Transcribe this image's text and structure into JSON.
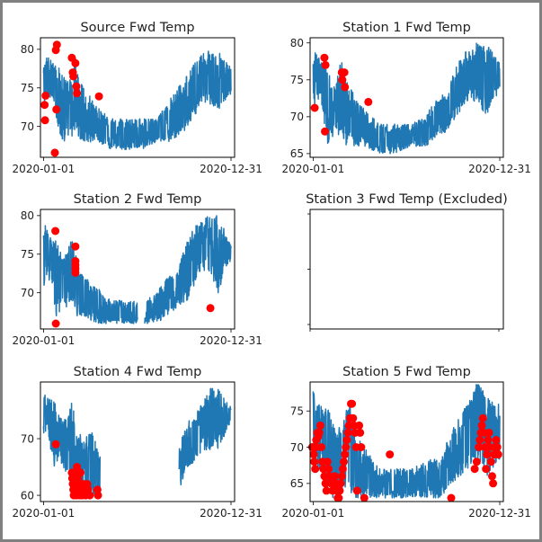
{
  "figure": {
    "background": "#ffffff",
    "border_color": "#808080"
  },
  "colors": {
    "line": "#1f77b4",
    "marker": "#ff0000",
    "axis": "#000000"
  },
  "chart_data": [
    {
      "type": "line",
      "title": "Source Fwd Temp",
      "xlabel": "",
      "ylabel": "",
      "x_ticks": [
        "2020-01-01",
        "2020-12-31"
      ],
      "y_ticks": [
        70,
        75,
        80
      ],
      "xlim_days": [
        -6,
        372
      ],
      "ylim": [
        66,
        81.5
      ],
      "series": [
        {
          "name": "temperature",
          "style": "line",
          "envelope_day_low_high": [
            [
              0,
              72,
              79
            ],
            [
              10,
              74,
              79
            ],
            [
              20,
              73,
              78
            ],
            [
              28,
              70,
              78
            ],
            [
              35,
              68,
              77
            ],
            [
              45,
              68,
              76
            ],
            [
              55,
              68,
              77
            ],
            [
              62,
              70,
              79
            ],
            [
              70,
              68,
              76
            ],
            [
              80,
              68,
              75
            ],
            [
              100,
              68,
              73
            ],
            [
              130,
              67,
              71
            ],
            [
              160,
              67,
              71
            ],
            [
              190,
              67,
              71
            ],
            [
              220,
              68,
              71
            ],
            [
              240,
              68,
              73
            ],
            [
              260,
              68,
              75
            ],
            [
              280,
              70,
              77
            ],
            [
              300,
              72,
              79
            ],
            [
              320,
              73,
              80
            ],
            [
              340,
              72,
              80
            ],
            [
              360,
              74,
              78
            ]
          ]
        }
      ],
      "anomalies": {
        "name": "flagged",
        "style": "marker",
        "points": [
          [
            2,
            72.8
          ],
          [
            3,
            70.8
          ],
          [
            4,
            74
          ],
          [
            22,
            66.6
          ],
          [
            24,
            79.9
          ],
          [
            26,
            80.6
          ],
          [
            25,
            72.2
          ],
          [
            55,
            78.9
          ],
          [
            57,
            77
          ],
          [
            58,
            76.5
          ],
          [
            62,
            78.2
          ],
          [
            64,
            75.2
          ],
          [
            65,
            74.3
          ],
          [
            108,
            73.9
          ]
        ]
      }
    },
    {
      "type": "line",
      "title": "Station 1 Fwd Temp",
      "xlabel": "",
      "ylabel": "",
      "x_ticks": [
        "2020-01-01",
        "2020-12-31"
      ],
      "y_ticks": [
        65,
        70,
        75,
        80
      ],
      "xlim_days": [
        -6,
        372
      ],
      "ylim": [
        64.5,
        80.7
      ],
      "series": [
        {
          "name": "temperature",
          "style": "line",
          "envelope_day_low_high": [
            [
              0,
              71,
              79
            ],
            [
              15,
              73,
              78
            ],
            [
              25,
              66,
              77
            ],
            [
              35,
              67,
              75
            ],
            [
              45,
              67,
              75
            ],
            [
              55,
              68,
              78
            ],
            [
              65,
              66,
              75
            ],
            [
              80,
              66,
              73
            ],
            [
              100,
              66,
              71
            ],
            [
              130,
              65,
              69
            ],
            [
              160,
              65,
              69
            ],
            [
              190,
              66,
              69
            ],
            [
              220,
              66,
              70
            ],
            [
              240,
              67,
              73
            ],
            [
              260,
              68,
              73
            ],
            [
              280,
              70,
              77
            ],
            [
              300,
              72,
              79
            ],
            [
              320,
              72,
              80
            ],
            [
              340,
              70,
              80
            ],
            [
              360,
              73,
              78
            ]
          ]
        }
      ],
      "anomalies": {
        "name": "flagged",
        "style": "marker",
        "points": [
          [
            3,
            71.2
          ],
          [
            22,
            78
          ],
          [
            23,
            68
          ],
          [
            24,
            77
          ],
          [
            56,
            76
          ],
          [
            57,
            75
          ],
          [
            61,
            76
          ],
          [
            62,
            74
          ],
          [
            108,
            72
          ]
        ]
      }
    },
    {
      "type": "line",
      "title": "Station 2 Fwd Temp",
      "xlabel": "",
      "ylabel": "",
      "x_ticks": [
        "2020-01-01",
        "2020-12-31"
      ],
      "y_ticks": [
        70,
        75,
        80
      ],
      "xlim_days": [
        -6,
        372
      ],
      "ylim": [
        65.3,
        80.8
      ],
      "series": [
        {
          "name": "temperature",
          "style": "line",
          "gap_days": [
            183,
            197
          ],
          "envelope_day_low_high": [
            [
              0,
              70,
              79
            ],
            [
              15,
              72,
              78
            ],
            [
              25,
              66,
              77
            ],
            [
              35,
              68,
              75
            ],
            [
              45,
              68,
              75
            ],
            [
              55,
              69,
              78
            ],
            [
              65,
              67,
              74
            ],
            [
              80,
              67,
              72
            ],
            [
              100,
              66,
              71
            ],
            [
              130,
              66,
              69
            ],
            [
              160,
              66,
              69
            ],
            [
              182,
              66,
              69
            ],
            [
              198,
              66,
              69
            ],
            [
              220,
              66,
              70
            ],
            [
              240,
              67,
              72
            ],
            [
              260,
              68,
              73
            ],
            [
              280,
              69,
              77
            ],
            [
              300,
              72,
              79
            ],
            [
              320,
              73,
              80
            ],
            [
              340,
              70,
              80
            ],
            [
              360,
              74,
              77
            ]
          ]
        }
      ],
      "anomalies": {
        "name": "flagged",
        "style": "marker",
        "points": [
          [
            23,
            78
          ],
          [
            24,
            66
          ],
          [
            62,
            76
          ],
          [
            62,
            74.1
          ],
          [
            62,
            73.6
          ],
          [
            62,
            73.1
          ],
          [
            62,
            72.6
          ],
          [
            325,
            68
          ]
        ]
      }
    },
    {
      "type": "line",
      "title": "Station 3 Fwd Temp (Excluded)",
      "xlabel": "",
      "ylabel": "",
      "x_ticks": [],
      "y_ticks": [],
      "series": [],
      "anomalies": {
        "points": []
      }
    },
    {
      "type": "line",
      "title": "Station 4 Fwd Temp",
      "xlabel": "",
      "ylabel": "",
      "x_ticks": [
        "2020-01-01",
        "2020-12-31"
      ],
      "y_ticks": [
        60,
        70
      ],
      "xlim_days": [
        -6,
        372
      ],
      "ylim": [
        58.9,
        80
      ],
      "series": [
        {
          "name": "temperature",
          "style": "line",
          "gap_days": [
            110,
            264
          ],
          "envelope_day_low_high": [
            [
              0,
              71,
              78
            ],
            [
              10,
              70,
              77
            ],
            [
              20,
              65,
              77
            ],
            [
              30,
              66,
              74
            ],
            [
              45,
              64,
              74
            ],
            [
              55,
              63,
              77
            ],
            [
              65,
              60,
              72
            ],
            [
              80,
              60,
              71
            ],
            [
              95,
              60,
              71
            ],
            [
              108,
              60,
              68
            ],
            [
              265,
              61,
              69
            ],
            [
              280,
              65,
              73
            ],
            [
              295,
              66,
              74
            ],
            [
              310,
              68,
              77
            ],
            [
              325,
              68,
              79
            ],
            [
              340,
              68,
              79
            ],
            [
              360,
              72,
              76
            ]
          ]
        }
      ],
      "anomalies": {
        "name": "flagged",
        "style": "marker",
        "points": [
          [
            24,
            69
          ],
          [
            55,
            64
          ],
          [
            56,
            63
          ],
          [
            57,
            62
          ],
          [
            58,
            61
          ],
          [
            59,
            60
          ],
          [
            60,
            64
          ],
          [
            61,
            63
          ],
          [
            62,
            62
          ],
          [
            63,
            61
          ],
          [
            64,
            60
          ],
          [
            65,
            65
          ],
          [
            66,
            64
          ],
          [
            67,
            63
          ],
          [
            68,
            62
          ],
          [
            69,
            61
          ],
          [
            70,
            60
          ],
          [
            72,
            64
          ],
          [
            73,
            62
          ],
          [
            74,
            61
          ],
          [
            75,
            60
          ],
          [
            78,
            62
          ],
          [
            80,
            61
          ],
          [
            82,
            60
          ],
          [
            85,
            62
          ],
          [
            87,
            61
          ],
          [
            90,
            60
          ],
          [
            105,
            61
          ],
          [
            106,
            60
          ]
        ]
      }
    },
    {
      "type": "line",
      "title": "Station 5 Fwd Temp",
      "xlabel": "",
      "ylabel": "",
      "x_ticks": [
        "2020-01-01",
        "2020-12-31"
      ],
      "y_ticks": [
        65,
        70,
        75
      ],
      "xlim_days": [
        -6,
        372
      ],
      "ylim": [
        62.5,
        79
      ],
      "series": [
        {
          "name": "temperature",
          "style": "line",
          "envelope_day_low_high": [
            [
              0,
              67,
              78
            ],
            [
              15,
              67,
              76
            ],
            [
              30,
              63,
              76
            ],
            [
              45,
              63,
              72
            ],
            [
              60,
              64,
              74
            ],
            [
              70,
              64,
              77
            ],
            [
              80,
              63,
              72
            ],
            [
              100,
              63,
              70
            ],
            [
              130,
              63,
              67
            ],
            [
              160,
              63,
              67
            ],
            [
              190,
              63,
              67
            ],
            [
              220,
              63,
              68
            ],
            [
              250,
              63,
              69
            ],
            [
              270,
              65,
              72
            ],
            [
              290,
              66,
              75
            ],
            [
              310,
              67,
              77
            ],
            [
              320,
              68,
              79
            ],
            [
              340,
              66,
              77
            ],
            [
              360,
              68,
              76
            ]
          ]
        }
      ],
      "anomalies": {
        "name": "flagged",
        "style": "marker",
        "points": [
          [
            -2,
            70
          ],
          [
            1,
            69
          ],
          [
            2,
            68
          ],
          [
            4,
            67
          ],
          [
            5,
            70
          ],
          [
            6,
            71
          ],
          [
            8,
            72
          ],
          [
            10,
            71.5
          ],
          [
            12,
            72
          ],
          [
            14,
            73
          ],
          [
            16,
            70
          ],
          [
            18,
            68
          ],
          [
            20,
            67
          ],
          [
            22,
            66
          ],
          [
            24,
            65
          ],
          [
            26,
            64
          ],
          [
            28,
            68
          ],
          [
            30,
            67
          ],
          [
            32,
            66
          ],
          [
            35,
            65
          ],
          [
            38,
            64
          ],
          [
            42,
            66
          ],
          [
            44,
            65
          ],
          [
            46,
            64
          ],
          [
            48,
            63
          ],
          [
            50,
            63
          ],
          [
            52,
            64
          ],
          [
            54,
            65
          ],
          [
            56,
            66
          ],
          [
            58,
            67
          ],
          [
            60,
            68
          ],
          [
            62,
            69
          ],
          [
            64,
            70
          ],
          [
            66,
            71
          ],
          [
            68,
            72
          ],
          [
            70,
            73
          ],
          [
            72,
            74
          ],
          [
            74,
            76
          ],
          [
            76,
            76
          ],
          [
            78,
            74
          ],
          [
            80,
            73
          ],
          [
            82,
            72
          ],
          [
            84,
            70
          ],
          [
            86,
            64
          ],
          [
            90,
            73
          ],
          [
            92,
            72
          ],
          [
            94,
            70
          ],
          [
            100,
            63
          ],
          [
            150,
            69
          ],
          [
            270,
            63
          ],
          [
            316,
            67
          ],
          [
            320,
            68
          ],
          [
            324,
            70
          ],
          [
            326,
            71
          ],
          [
            328,
            72
          ],
          [
            330,
            73
          ],
          [
            332,
            74
          ],
          [
            334,
            72
          ],
          [
            336,
            70
          ],
          [
            338,
            67
          ],
          [
            340,
            69
          ],
          [
            342,
            71
          ],
          [
            344,
            72
          ],
          [
            346,
            70
          ],
          [
            348,
            68
          ],
          [
            350,
            66
          ],
          [
            352,
            65
          ],
          [
            354,
            69
          ],
          [
            356,
            70
          ],
          [
            358,
            71
          ],
          [
            360,
            70
          ],
          [
            362,
            69
          ]
        ]
      }
    }
  ]
}
